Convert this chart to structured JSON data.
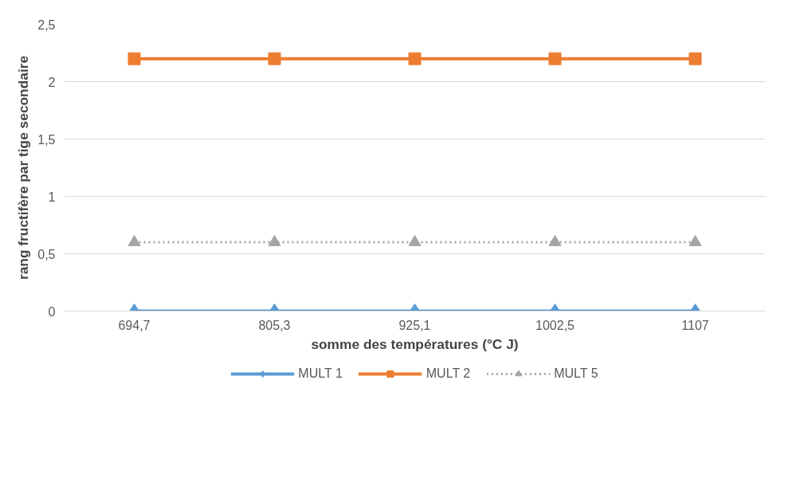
{
  "chart_data": {
    "type": "line",
    "xlabel": "somme des températures (°C J)",
    "ylabel": "rang fructifère par tige secondaire",
    "categories": [
      "694,7",
      "805,3",
      "925,1",
      "1002,5",
      "1107"
    ],
    "ylim": [
      0,
      2.5
    ],
    "yticks": [
      0,
      {
        "value": 0.5,
        "label": "0,5"
      },
      1,
      {
        "value": 1.5,
        "label": "1,5"
      },
      2,
      {
        "value": 2.5,
        "label": "2,5"
      }
    ],
    "grid": "y",
    "legend": "bottom",
    "series": [
      {
        "name": "MULT 1",
        "color": "#5b9bd5",
        "marker": "diamond",
        "line_style": "solid",
        "values": [
          0,
          0,
          0,
          0,
          0
        ]
      },
      {
        "name": "MULT 2",
        "color": "#ed7d31",
        "marker": "square",
        "line_style": "solid",
        "values": [
          2.2,
          2.2,
          2.2,
          2.2,
          2.2
        ]
      },
      {
        "name": "MULT 5",
        "color": "#a5a5a5",
        "marker": "triangle",
        "line_style": "dotted",
        "values": [
          0.6,
          0.6,
          0.6,
          0.6,
          0.6
        ]
      }
    ]
  }
}
